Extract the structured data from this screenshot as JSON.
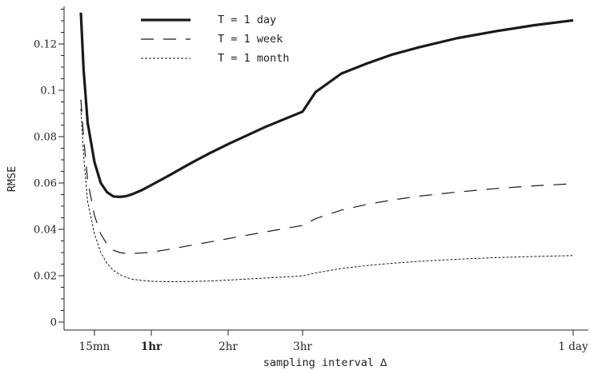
{
  "chart_data": {
    "type": "line",
    "title": "",
    "xlabel": "sampling interval ∆",
    "ylabel": "RMSE",
    "x_unit": "minutes",
    "xlim": [
      0,
      1440
    ],
    "ylim": [
      0,
      0.13
    ],
    "x_ticks": [
      {
        "value": 15,
        "label": "15mn"
      },
      {
        "value": 60,
        "label": "1hr",
        "bold": true
      },
      {
        "value": 120,
        "label": "2hr"
      },
      {
        "value": 180,
        "label": "3hr"
      },
      {
        "value": 1440,
        "label": "1 day"
      }
    ],
    "y_ticks": [
      {
        "value": 0,
        "label": "0"
      },
      {
        "value": 0.02,
        "label": "0.02"
      },
      {
        "value": 0.04,
        "label": "0.04"
      },
      {
        "value": 0.06,
        "label": "0.06"
      },
      {
        "value": 0.08,
        "label": "0.08"
      },
      {
        "value": 0.1,
        "label": "0.1"
      },
      {
        "value": 0.12,
        "label": "0.12"
      }
    ],
    "grid": false,
    "legend_position": "top-left",
    "series": [
      {
        "name": "T = 1 day",
        "style": "solid-thick",
        "color": "#1a1a1a",
        "points": [
          [
            5,
            0.1335
          ],
          [
            7,
            0.109
          ],
          [
            10,
            0.086
          ],
          [
            15,
            0.069
          ],
          [
            20,
            0.06
          ],
          [
            25,
            0.056
          ],
          [
            30,
            0.0542
          ],
          [
            35,
            0.054
          ],
          [
            40,
            0.0543
          ],
          [
            45,
            0.0552
          ],
          [
            52,
            0.0568
          ],
          [
            60,
            0.0591
          ],
          [
            75,
            0.0636
          ],
          [
            90,
            0.0683
          ],
          [
            105,
            0.0727
          ],
          [
            120,
            0.0768
          ],
          [
            150,
            0.0842
          ],
          [
            180,
            0.0908
          ],
          [
            240,
            0.0992
          ],
          [
            360,
            0.1072
          ],
          [
            480,
            0.1116
          ],
          [
            600,
            0.1155
          ],
          [
            720,
            0.1185
          ],
          [
            900,
            0.1225
          ],
          [
            1080,
            0.1255
          ],
          [
            1260,
            0.1281
          ],
          [
            1440,
            0.1302
          ]
        ]
      },
      {
        "name": "T = 1 week",
        "style": "long-dash",
        "color": "#1a1a1a",
        "points": [
          [
            5,
            0.096
          ],
          [
            7,
            0.08
          ],
          [
            10,
            0.061
          ],
          [
            15,
            0.046
          ],
          [
            20,
            0.038
          ],
          [
            25,
            0.0335
          ],
          [
            30,
            0.031
          ],
          [
            35,
            0.03
          ],
          [
            40,
            0.0296
          ],
          [
            45,
            0.0296
          ],
          [
            52,
            0.0298
          ],
          [
            60,
            0.0301
          ],
          [
            75,
            0.0315
          ],
          [
            90,
            0.033
          ],
          [
            105,
            0.0345
          ],
          [
            120,
            0.036
          ],
          [
            150,
            0.0389
          ],
          [
            180,
            0.0417
          ],
          [
            240,
            0.0446
          ],
          [
            360,
            0.0483
          ],
          [
            480,
            0.0508
          ],
          [
            600,
            0.0527
          ],
          [
            720,
            0.0543
          ],
          [
            900,
            0.0561
          ],
          [
            1080,
            0.0576
          ],
          [
            1260,
            0.0588
          ],
          [
            1440,
            0.0597
          ]
        ]
      },
      {
        "name": "T = 1 month",
        "style": "short-dash",
        "color": "#1a1a1a",
        "points": [
          [
            5,
            0.092
          ],
          [
            7,
            0.072
          ],
          [
            10,
            0.052
          ],
          [
            15,
            0.038
          ],
          [
            20,
            0.03
          ],
          [
            25,
            0.0252
          ],
          [
            30,
            0.0223
          ],
          [
            35,
            0.0205
          ],
          [
            40,
            0.0193
          ],
          [
            45,
            0.0185
          ],
          [
            52,
            0.018
          ],
          [
            60,
            0.0176
          ],
          [
            75,
            0.0174
          ],
          [
            90,
            0.0175
          ],
          [
            105,
            0.0177
          ],
          [
            120,
            0.0181
          ],
          [
            150,
            0.019
          ],
          [
            180,
            0.0199
          ],
          [
            240,
            0.0212
          ],
          [
            360,
            0.0231
          ],
          [
            480,
            0.0244
          ],
          [
            600,
            0.0254
          ],
          [
            720,
            0.0262
          ],
          [
            900,
            0.0271
          ],
          [
            1080,
            0.0278
          ],
          [
            1260,
            0.0283
          ],
          [
            1440,
            0.0287
          ]
        ]
      }
    ]
  }
}
